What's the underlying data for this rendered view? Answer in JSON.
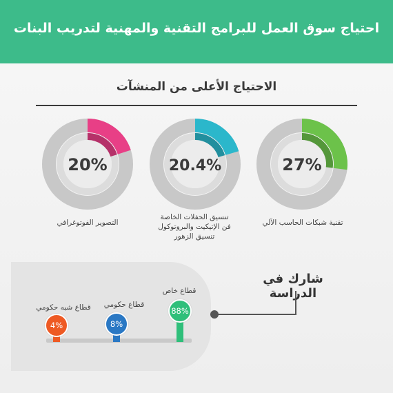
{
  "header": {
    "title": "احتياج سوق العمل للبرامج التقنية والمهنية لتدريب البنات"
  },
  "section": {
    "title": "الاحتياج الأعلى من المنشآت"
  },
  "participation": {
    "title": "شارك في الدراسة"
  },
  "colors": {
    "banner": "#3dbb8a",
    "pink": "#e83f86",
    "cyan": "#2bb7cb",
    "green": "#6cc24a",
    "orange": "#ee5a24",
    "blue": "#2a78c4",
    "teal": "#2fbf7a",
    "ring_gray": "#c8c8c8"
  },
  "chart_data": [
    {
      "type": "pie",
      "title": "الاحتياج الأعلى من المنشآت",
      "items": [
        {
          "label": "تقنية شبكات الحاسب الآلي",
          "value": 27,
          "display": "27%",
          "color": "#6cc24a"
        },
        {
          "label": "تنسيق الحفلات الخاصة فن الإتيكيت والبروتوكول تنسيق الزهور",
          "label_lines": [
            "تنسيق الحفلات الخاصة",
            "فن الإتيكيت والبروتوكول",
            "تنسيق الزهور"
          ],
          "value": 20.4,
          "display": "20.4%",
          "color": "#2bb7cb"
        },
        {
          "label": "التصوير الفوتوغرافي",
          "value": 20,
          "display": "20%",
          "color": "#e83f86"
        }
      ]
    },
    {
      "type": "bar",
      "title": "شارك في الدراسة",
      "categories": [
        "قطاع خاص",
        "قطاع حكومي",
        "قطاع شبه حكومي"
      ],
      "values": [
        88,
        8,
        4
      ],
      "display": [
        "88%",
        "8%",
        "4%"
      ],
      "colors": [
        "#2fbf7a",
        "#2a78c4",
        "#ee5a24"
      ]
    }
  ]
}
